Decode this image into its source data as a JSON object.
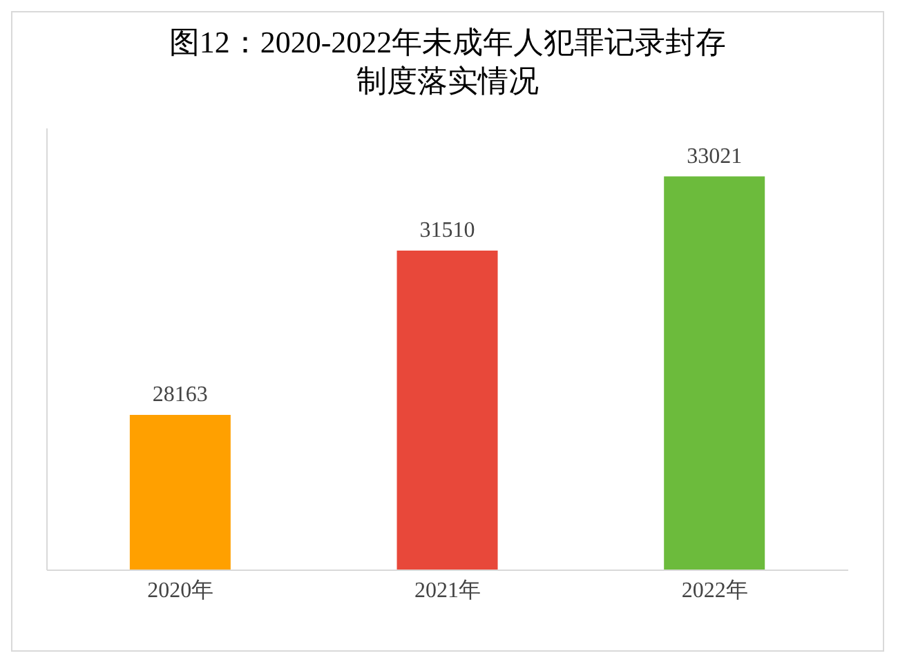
{
  "chart_data": {
    "type": "bar",
    "title": "图12：2020-2022年未成年人犯罪记录封存制度落实情况",
    "categories": [
      "2020年",
      "2021年",
      "2022年"
    ],
    "values": [
      28163,
      31510,
      33021
    ],
    "colors": [
      "#ffa000",
      "#e8483a",
      "#6cbb3c"
    ],
    "data_labels": true,
    "ylim": [
      25000,
      34000
    ],
    "tick_labels": "x"
  }
}
